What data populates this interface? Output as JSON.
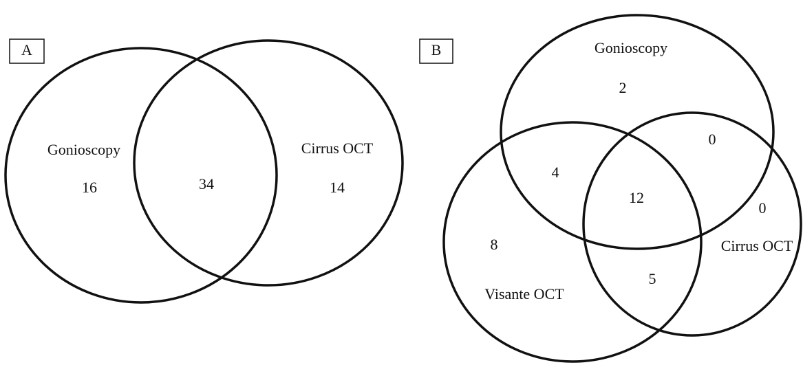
{
  "panels": [
    {
      "label": "A",
      "sets": [
        "Gonioscopy",
        "Cirrus OCT"
      ],
      "regions": {
        "gonioscopy_only": "16",
        "both": "34",
        "cirrus_only": "14"
      }
    },
    {
      "label": "B",
      "sets": [
        "Gonioscopy",
        "Cirrus OCT",
        "Visante OCT"
      ],
      "regions": {
        "gonioscopy_only": "2",
        "gonioscopy_cirrus": "0",
        "gonioscopy_visante": "4",
        "all": "12",
        "cirrus_only": "0",
        "visante_only": "8",
        "cirrus_visante": "5"
      }
    }
  ]
}
